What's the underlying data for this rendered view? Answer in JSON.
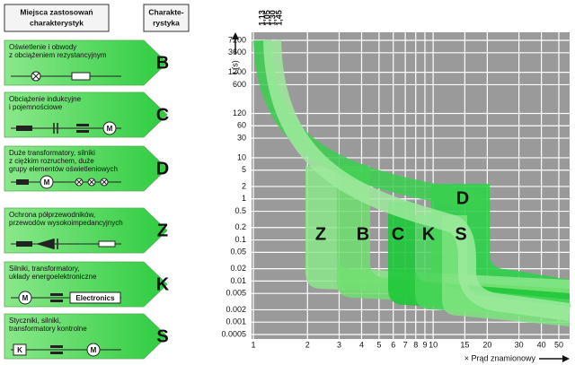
{
  "header": {
    "applications": [
      "Miejsca zastosowań",
      "charakterystyk"
    ],
    "characteristic": [
      "Charakte-",
      "rystyka"
    ]
  },
  "rows": [
    {
      "lines": [
        "Oświetlenie i obwody",
        "z obciążeniem rezystancyjnym"
      ],
      "letter": "B"
    },
    {
      "lines": [
        "Obciążenie indukcyjne",
        "i pojemnościowe"
      ],
      "letter": "C"
    },
    {
      "lines": [
        "Duże transformatory, silniki",
        "z ciężkim rozruchem, duże",
        "grupy elementów oświetleniowych"
      ],
      "letter": "D"
    },
    {
      "lines": [
        "Ochrona półprzewodników,",
        "przewodów wysokoimpedancyjnych"
      ],
      "letter": "Z"
    },
    {
      "lines": [
        "Silniki, transformatory,",
        "układy energoelektroniczne"
      ],
      "letter": "K",
      "icon_label": "Electronics"
    },
    {
      "lines": [
        "Styczniki, silniki,",
        "transformatory kontrolne"
      ],
      "letter": "S",
      "icon_label": "K"
    }
  ],
  "plot": {
    "y_label": "t (s)",
    "x_label": "× Prąd znamionowy",
    "top_labels": [
      "1,13",
      "1,05",
      "1,30",
      "1,45"
    ],
    "curve_labels": [
      "Z",
      "B",
      "C",
      "K",
      "S",
      "D"
    ],
    "xlim": [
      1,
      50
    ],
    "ylim": [
      0.0005,
      7200
    ],
    "log_x": true,
    "log_y": true,
    "grid": true,
    "yticks": [
      7200,
      3600,
      1200,
      600,
      120,
      60,
      30,
      10,
      5,
      2,
      1,
      0.5,
      0.2,
      0.1,
      0.05,
      0.02,
      0.01,
      0.005,
      0.002,
      0.001,
      0.0005
    ],
    "xticks": [
      1,
      2,
      3,
      4,
      5,
      6,
      7,
      8,
      9,
      10,
      15,
      20,
      30,
      40,
      50
    ]
  }
}
